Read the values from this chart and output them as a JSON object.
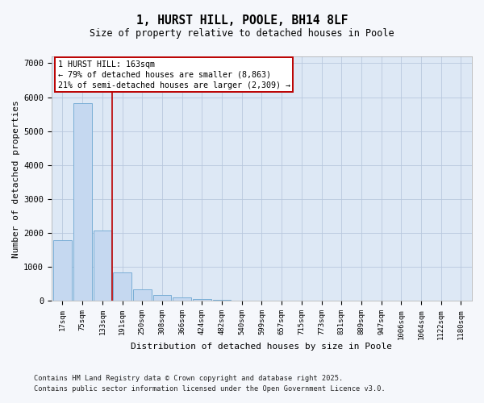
{
  "title1": "1, HURST HILL, POOLE, BH14 8LF",
  "title2": "Size of property relative to detached houses in Poole",
  "xlabel": "Distribution of detached houses by size in Poole",
  "ylabel": "Number of detached properties",
  "bar_labels": [
    "17sqm",
    "75sqm",
    "133sqm",
    "191sqm",
    "250sqm",
    "308sqm",
    "366sqm",
    "424sqm",
    "482sqm",
    "540sqm",
    "599sqm",
    "657sqm",
    "715sqm",
    "773sqm",
    "831sqm",
    "889sqm",
    "947sqm",
    "1006sqm",
    "1064sqm",
    "1122sqm",
    "1180sqm"
  ],
  "bar_values": [
    1780,
    5820,
    2070,
    840,
    335,
    175,
    100,
    65,
    45,
    20,
    5,
    5,
    0,
    5,
    0,
    0,
    0,
    0,
    0,
    0,
    0
  ],
  "bar_color": "#c5d8f0",
  "bar_edge_color": "#7aaed6",
  "vline_color": "#bb0000",
  "vline_x": 2.48,
  "annotation_text": "1 HURST HILL: 163sqm\n← 79% of detached houses are smaller (8,863)\n21% of semi-detached houses are larger (2,309) →",
  "annotation_box_color": "#ffffff",
  "annotation_edge_color": "#bb0000",
  "ylim_max": 7200,
  "yticks": [
    0,
    1000,
    2000,
    3000,
    4000,
    5000,
    6000,
    7000
  ],
  "background_color": "#dde8f5",
  "fig_background_color": "#f5f7fb",
  "grid_color": "#b8c8de",
  "footer1": "Contains HM Land Registry data © Crown copyright and database right 2025.",
  "footer2": "Contains public sector information licensed under the Open Government Licence v3.0."
}
